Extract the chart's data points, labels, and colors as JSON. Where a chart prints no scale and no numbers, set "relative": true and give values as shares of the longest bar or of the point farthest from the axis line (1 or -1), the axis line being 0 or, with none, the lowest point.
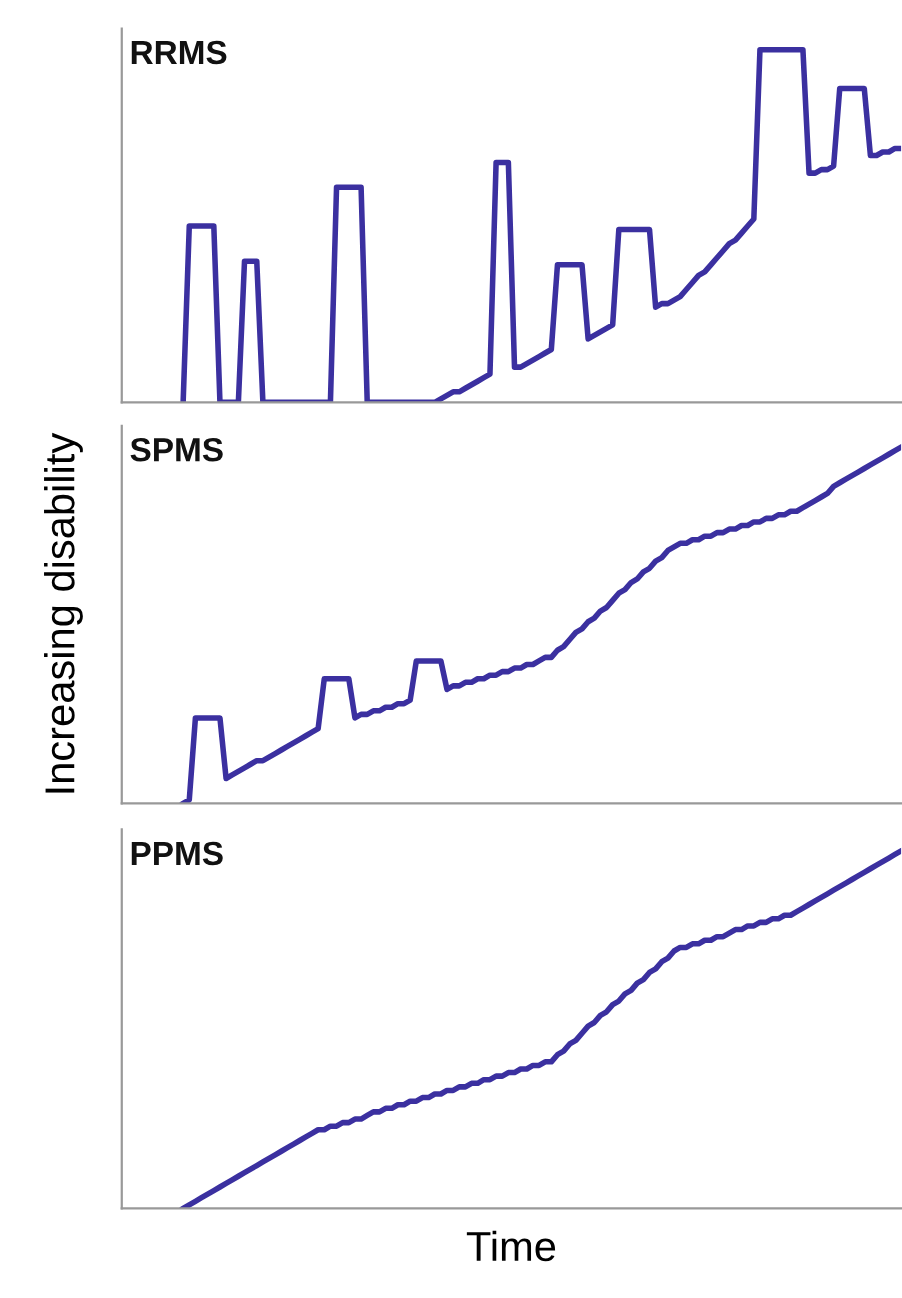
{
  "chart_data": [
    {
      "type": "line",
      "title": "RRMS",
      "relative": true,
      "tick_labels": false,
      "grid": false,
      "legend": false,
      "categories": [
        null,
        null,
        null,
        null,
        null,
        null,
        null,
        null,
        null,
        null,
        null,
        null,
        null,
        null,
        null,
        null,
        null,
        null,
        null,
        null,
        null,
        null,
        null,
        null,
        null,
        null,
        null,
        null,
        null,
        null,
        null,
        null,
        null,
        null,
        null,
        null,
        null,
        null,
        null,
        null,
        null,
        null,
        null,
        null,
        null,
        null,
        null,
        null,
        null,
        null,
        null,
        null,
        null,
        null,
        null,
        null,
        null,
        null,
        null,
        null,
        null,
        null,
        null,
        null,
        null,
        null,
        null,
        null,
        null,
        null,
        null,
        null,
        null,
        null,
        null,
        null,
        null,
        null,
        null,
        null,
        null,
        null,
        null,
        null,
        null,
        null,
        null,
        null,
        null,
        null,
        null,
        null,
        null,
        null,
        null,
        null,
        null,
        null,
        null,
        null,
        null,
        null,
        null,
        null,
        null,
        null,
        null,
        null,
        null,
        null,
        null,
        null,
        null,
        null,
        null,
        null,
        null,
        null,
        null,
        null,
        null,
        null,
        null,
        null,
        null,
        null,
        null,
        null
      ],
      "series": [
        {
          "color": "#3b30a0",
          "values": [
            null,
            null,
            null,
            null,
            null,
            null,
            null,
            null,
            null,
            null,
            0,
            0.5,
            0.5,
            0.5,
            0.5,
            0.5,
            0,
            0,
            0,
            0,
            0.4,
            0.4,
            0.4,
            0,
            0,
            0,
            0,
            0,
            0,
            0,
            0,
            0,
            0,
            0,
            0,
            0.61,
            0.61,
            0.61,
            0.61,
            0.61,
            0,
            0,
            0,
            0,
            0,
            0,
            0,
            0,
            0,
            0,
            0,
            0,
            0.01,
            0.02,
            0.03,
            0.03,
            0.04,
            0.05,
            0.06,
            0.07,
            0.08,
            0.68,
            0.68,
            0.68,
            0.1,
            0.1,
            0.11,
            0.12,
            0.13,
            0.14,
            0.15,
            0.39,
            0.39,
            0.39,
            0.39,
            0.39,
            0.18,
            0.19,
            0.2,
            0.21,
            0.22,
            0.49,
            0.49,
            0.49,
            0.49,
            0.49,
            0.49,
            0.27,
            0.28,
            0.28,
            0.29,
            0.3,
            0.32,
            0.34,
            0.36,
            0.37,
            0.39,
            0.41,
            0.43,
            0.45,
            0.46,
            0.48,
            0.5,
            0.52,
            1,
            1,
            1,
            1,
            1,
            1,
            1,
            1,
            0.65,
            0.65,
            0.66,
            0.66,
            0.67,
            0.89,
            0.89,
            0.89,
            0.89,
            0.89,
            0.7,
            0.7,
            0.71,
            0.71,
            0.72,
            0.72
          ]
        }
      ]
    },
    {
      "type": "line",
      "title": "SPMS",
      "ylabel": "Increasing disability",
      "relative": true,
      "tick_labels": false,
      "grid": false,
      "legend": false,
      "categories": [
        null,
        null,
        null,
        null,
        null,
        null,
        null,
        null,
        null,
        null,
        null,
        null,
        null,
        null,
        null,
        null,
        null,
        null,
        null,
        null,
        null,
        null,
        null,
        null,
        null,
        null,
        null,
        null,
        null,
        null,
        null,
        null,
        null,
        null,
        null,
        null,
        null,
        null,
        null,
        null,
        null,
        null,
        null,
        null,
        null,
        null,
        null,
        null,
        null,
        null,
        null,
        null,
        null,
        null,
        null,
        null,
        null,
        null,
        null,
        null,
        null,
        null,
        null,
        null,
        null,
        null,
        null,
        null,
        null,
        null,
        null,
        null,
        null,
        null,
        null,
        null,
        null,
        null,
        null,
        null,
        null,
        null,
        null,
        null,
        null,
        null,
        null,
        null,
        null,
        null,
        null,
        null,
        null,
        null,
        null,
        null,
        null,
        null,
        null,
        null,
        null,
        null,
        null,
        null,
        null,
        null,
        null,
        null,
        null,
        null,
        null,
        null,
        null,
        null,
        null,
        null,
        null,
        null,
        null,
        null,
        null,
        null,
        null,
        null,
        null,
        null,
        null,
        null
      ],
      "series": [
        {
          "color": "#3b30a0",
          "values": [
            null,
            null,
            null,
            null,
            null,
            null,
            null,
            null,
            null,
            null,
            0,
            0.01,
            0.24,
            0.24,
            0.24,
            0.24,
            0.24,
            0.07,
            0.08,
            0.09,
            0.1,
            0.11,
            0.12,
            0.12,
            0.13,
            0.14,
            0.15,
            0.16,
            0.17,
            0.18,
            0.19,
            0.2,
            0.21,
            0.35,
            0.35,
            0.35,
            0.35,
            0.35,
            0.24,
            0.25,
            0.25,
            0.26,
            0.26,
            0.27,
            0.27,
            0.28,
            0.28,
            0.29,
            0.4,
            0.4,
            0.4,
            0.4,
            0.4,
            0.32,
            0.33,
            0.33,
            0.34,
            0.34,
            0.35,
            0.35,
            0.36,
            0.36,
            0.37,
            0.37,
            0.38,
            0.38,
            0.39,
            0.39,
            0.4,
            0.41,
            0.41,
            0.43,
            0.44,
            0.46,
            0.48,
            0.49,
            0.51,
            0.52,
            0.54,
            0.55,
            0.57,
            0.59,
            0.6,
            0.62,
            0.63,
            0.65,
            0.66,
            0.68,
            0.69,
            0.71,
            0.72,
            0.73,
            0.73,
            0.74,
            0.74,
            0.75,
            0.75,
            0.76,
            0.76,
            0.77,
            0.77,
            0.78,
            0.78,
            0.79,
            0.79,
            0.8,
            0.8,
            0.81,
            0.81,
            0.82,
            0.82,
            0.83,
            0.84,
            0.85,
            0.86,
            0.87,
            0.89,
            0.9,
            0.91,
            0.92,
            0.93,
            0.94,
            0.95,
            0.96,
            0.97,
            0.98,
            0.99,
            1
          ]
        }
      ]
    },
    {
      "type": "line",
      "title": "PPMS",
      "xlabel": "Time",
      "relative": true,
      "tick_labels": false,
      "grid": false,
      "legend": false,
      "categories": [
        null,
        null,
        null,
        null,
        null,
        null,
        null,
        null,
        null,
        null,
        null,
        null,
        null,
        null,
        null,
        null,
        null,
        null,
        null,
        null,
        null,
        null,
        null,
        null,
        null,
        null,
        null,
        null,
        null,
        null,
        null,
        null,
        null,
        null,
        null,
        null,
        null,
        null,
        null,
        null,
        null,
        null,
        null,
        null,
        null,
        null,
        null,
        null,
        null,
        null,
        null,
        null,
        null,
        null,
        null,
        null,
        null,
        null,
        null,
        null,
        null,
        null,
        null,
        null,
        null,
        null,
        null,
        null,
        null,
        null,
        null,
        null,
        null,
        null,
        null,
        null,
        null,
        null,
        null,
        null,
        null,
        null,
        null,
        null,
        null,
        null,
        null,
        null,
        null,
        null,
        null,
        null,
        null,
        null,
        null,
        null,
        null,
        null,
        null,
        null,
        null,
        null,
        null,
        null,
        null,
        null,
        null,
        null,
        null,
        null,
        null,
        null,
        null,
        null,
        null,
        null,
        null,
        null,
        null,
        null,
        null,
        null,
        null,
        null,
        null,
        null,
        null,
        null
      ],
      "series": [
        {
          "color": "#3b30a0",
          "values": [
            null,
            null,
            null,
            null,
            null,
            null,
            null,
            null,
            null,
            null,
            0,
            0.01,
            0.02,
            0.03,
            0.04,
            0.05,
            0.06,
            0.07,
            0.08,
            0.09,
            0.1,
            0.11,
            0.12,
            0.13,
            0.14,
            0.15,
            0.16,
            0.17,
            0.18,
            0.19,
            0.2,
            0.21,
            0.22,
            0.22,
            0.23,
            0.23,
            0.24,
            0.24,
            0.25,
            0.25,
            0.26,
            0.27,
            0.27,
            0.28,
            0.28,
            0.29,
            0.29,
            0.3,
            0.3,
            0.31,
            0.31,
            0.32,
            0.32,
            0.33,
            0.33,
            0.34,
            0.34,
            0.35,
            0.35,
            0.36,
            0.36,
            0.37,
            0.37,
            0.38,
            0.38,
            0.39,
            0.39,
            0.4,
            0.4,
            0.41,
            0.41,
            0.43,
            0.44,
            0.46,
            0.47,
            0.49,
            0.51,
            0.52,
            0.54,
            0.55,
            0.57,
            0.58,
            0.6,
            0.61,
            0.63,
            0.64,
            0.66,
            0.67,
            0.69,
            0.7,
            0.72,
            0.73,
            0.73,
            0.74,
            0.74,
            0.75,
            0.75,
            0.76,
            0.76,
            0.77,
            0.78,
            0.78,
            0.79,
            0.79,
            0.8,
            0.8,
            0.81,
            0.81,
            0.82,
            0.82,
            0.83,
            0.84,
            0.85,
            0.86,
            0.87,
            0.88,
            0.89,
            0.9,
            0.91,
            0.92,
            0.93,
            0.94,
            0.95,
            0.96,
            0.97,
            0.98,
            0.99,
            1
          ]
        }
      ]
    }
  ]
}
